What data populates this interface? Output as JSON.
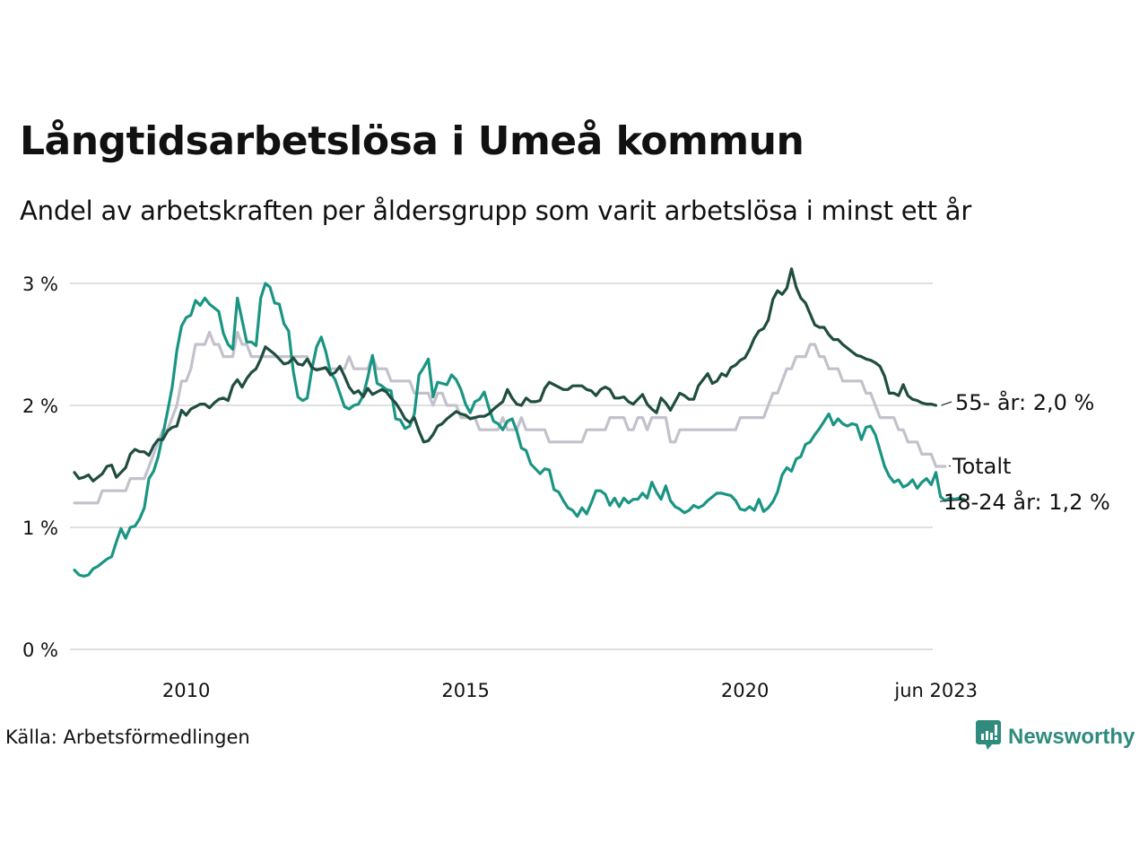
{
  "header": {
    "title": "Långtidsarbetslösa i Umeå kommun",
    "subtitle": "Andel av arbetskraften per åldersgrupp som varit arbetslösa i minst ett år"
  },
  "footer": {
    "source": "Källa: Arbetsförmedlingen",
    "brand": "Newsworthy",
    "brand_icon": "newsworthy-logo-icon"
  },
  "colors": {
    "age55": "#1f4d40",
    "total": "#c3c1cc",
    "age18_24": "#1a9583",
    "grid": "#e0e0e0"
  },
  "chart_data": {
    "type": "line",
    "title": "Långtidsarbetslösa i Umeå kommun",
    "subtitle": "Andel av arbetskraften per åldersgrupp som varit arbetslösa i minst ett år",
    "xlabel": "",
    "ylabel": "",
    "x_start": "2008-01",
    "x_end": "2023-06",
    "x_frequency": "monthly",
    "ylim": [
      0,
      3.2
    ],
    "y_ticks": [
      {
        "value": 0,
        "label": "0 %"
      },
      {
        "value": 1,
        "label": "1 %"
      },
      {
        "value": 2,
        "label": "2 %"
      },
      {
        "value": 3,
        "label": "3 %"
      }
    ],
    "x_ticks": [
      {
        "value": 2010,
        "label": "2010"
      },
      {
        "value": 2015,
        "label": "2015"
      },
      {
        "value": 2020,
        "label": "2020"
      },
      {
        "value": 2023.42,
        "label": "jun 2023"
      }
    ],
    "grid": true,
    "legend": "direct-labels-right",
    "series": [
      {
        "key": "age55",
        "name": "55- år",
        "end_label": "55- år: 2,0 %",
        "values": [
          1.45,
          1.4,
          1.41,
          1.43,
          1.38,
          1.41,
          1.44,
          1.5,
          1.51,
          1.41,
          1.45,
          1.49,
          1.6,
          1.64,
          1.62,
          1.62,
          1.59,
          1.67,
          1.72,
          1.72,
          1.79,
          1.82,
          1.83,
          1.96,
          1.92,
          1.97,
          1.99,
          2.01,
          2.01,
          1.98,
          2.02,
          2.05,
          2.06,
          2.04,
          2.16,
          2.21,
          2.15,
          2.22,
          2.27,
          2.3,
          2.38,
          2.48,
          2.45,
          2.42,
          2.38,
          2.34,
          2.35,
          2.39,
          2.34,
          2.33,
          2.38,
          2.31,
          2.29,
          2.3,
          2.31,
          2.25,
          2.27,
          2.32,
          2.24,
          2.15,
          2.1,
          2.12,
          2.07,
          2.14,
          2.09,
          2.11,
          2.13,
          2.11,
          2.06,
          2.02,
          1.96,
          1.89,
          1.86,
          1.9,
          1.79,
          1.7,
          1.71,
          1.76,
          1.83,
          1.85,
          1.89,
          1.92,
          1.95,
          1.93,
          1.92,
          1.89,
          1.9,
          1.91,
          1.91,
          1.93,
          1.97,
          2.0,
          2.03,
          2.13,
          2.06,
          2.01,
          2.0,
          2.06,
          2.03,
          2.03,
          2.04,
          2.14,
          2.19,
          2.17,
          2.15,
          2.13,
          2.13,
          2.16,
          2.16,
          2.16,
          2.13,
          2.12,
          2.08,
          2.13,
          2.15,
          2.13,
          2.06,
          2.06,
          2.07,
          2.03,
          2.01,
          2.05,
          2.09,
          2.01,
          1.97,
          1.94,
          2.06,
          2.02,
          1.96,
          2.03,
          2.1,
          2.08,
          2.05,
          2.05,
          2.16,
          2.21,
          2.26,
          2.18,
          2.2,
          2.26,
          2.24,
          2.31,
          2.33,
          2.37,
          2.39,
          2.46,
          2.55,
          2.61,
          2.63,
          2.7,
          2.87,
          2.94,
          2.91,
          2.96,
          3.12,
          2.97,
          2.88,
          2.84,
          2.75,
          2.66,
          2.64,
          2.64,
          2.58,
          2.54,
          2.54,
          2.5,
          2.47,
          2.44,
          2.41,
          2.4,
          2.38,
          2.37,
          2.35,
          2.32,
          2.24,
          2.1,
          2.1,
          2.08,
          2.17,
          2.08,
          2.05,
          2.04,
          2.02,
          2.01,
          2.01,
          2.0
        ]
      },
      {
        "key": "total",
        "name": "Totalt",
        "end_label": "Totalt",
        "values": [
          1.2,
          1.2,
          1.2,
          1.2,
          1.2,
          1.2,
          1.3,
          1.3,
          1.3,
          1.3,
          1.3,
          1.3,
          1.4,
          1.4,
          1.4,
          1.4,
          1.5,
          1.6,
          1.7,
          1.8,
          1.8,
          1.9,
          2.0,
          2.2,
          2.2,
          2.3,
          2.5,
          2.5,
          2.5,
          2.6,
          2.5,
          2.5,
          2.4,
          2.4,
          2.4,
          2.6,
          2.5,
          2.5,
          2.4,
          2.4,
          2.4,
          2.4,
          2.4,
          2.4,
          2.4,
          2.4,
          2.4,
          2.4,
          2.4,
          2.4,
          2.4,
          2.3,
          2.3,
          2.3,
          2.3,
          2.3,
          2.3,
          2.3,
          2.3,
          2.4,
          2.3,
          2.3,
          2.3,
          2.3,
          2.4,
          2.3,
          2.3,
          2.3,
          2.2,
          2.2,
          2.2,
          2.2,
          2.2,
          2.1,
          2.1,
          2.1,
          2.1,
          2.0,
          2.1,
          2.1,
          2.0,
          2.0,
          2.0,
          1.9,
          1.9,
          1.9,
          1.9,
          1.8,
          1.8,
          1.8,
          1.8,
          1.8,
          1.9,
          1.8,
          1.8,
          1.8,
          1.9,
          1.8,
          1.8,
          1.8,
          1.8,
          1.8,
          1.7,
          1.7,
          1.7,
          1.7,
          1.7,
          1.7,
          1.7,
          1.7,
          1.8,
          1.8,
          1.8,
          1.8,
          1.8,
          1.9,
          1.9,
          1.9,
          1.9,
          1.8,
          1.8,
          1.9,
          1.9,
          1.8,
          1.9,
          1.9,
          1.9,
          1.9,
          1.7,
          1.7,
          1.8,
          1.8,
          1.8,
          1.8,
          1.8,
          1.8,
          1.8,
          1.8,
          1.8,
          1.8,
          1.8,
          1.8,
          1.8,
          1.9,
          1.9,
          1.9,
          1.9,
          1.9,
          1.9,
          2.0,
          2.1,
          2.1,
          2.2,
          2.3,
          2.3,
          2.4,
          2.4,
          2.4,
          2.5,
          2.5,
          2.4,
          2.4,
          2.3,
          2.3,
          2.3,
          2.2,
          2.2,
          2.2,
          2.2,
          2.2,
          2.1,
          2.1,
          2.0,
          1.9,
          1.9,
          1.9,
          1.9,
          1.8,
          1.8,
          1.7,
          1.7,
          1.7,
          1.6,
          1.6,
          1.6,
          1.5,
          1.5,
          1.5
        ]
      },
      {
        "key": "age18_24",
        "name": "18-24 år",
        "end_label": "18-24 år: 1,2 %",
        "values": [
          0.65,
          0.61,
          0.6,
          0.61,
          0.66,
          0.68,
          0.71,
          0.74,
          0.76,
          0.88,
          0.99,
          0.91,
          1.0,
          1.01,
          1.07,
          1.16,
          1.4,
          1.46,
          1.58,
          1.76,
          1.95,
          2.15,
          2.45,
          2.65,
          2.72,
          2.74,
          2.86,
          2.82,
          2.88,
          2.83,
          2.8,
          2.77,
          2.59,
          2.5,
          2.46,
          2.88,
          2.7,
          2.52,
          2.52,
          2.49,
          2.88,
          3.0,
          2.97,
          2.84,
          2.83,
          2.67,
          2.61,
          2.28,
          2.07,
          2.04,
          2.06,
          2.3,
          2.48,
          2.56,
          2.44,
          2.27,
          2.21,
          2.1,
          1.99,
          1.97,
          2.0,
          2.01,
          2.08,
          2.23,
          2.41,
          2.18,
          2.16,
          2.13,
          2.12,
          1.89,
          1.88,
          1.81,
          1.83,
          1.93,
          2.25,
          2.31,
          2.38,
          2.07,
          2.19,
          2.18,
          2.17,
          2.25,
          2.21,
          2.13,
          2.01,
          1.94,
          2.03,
          2.05,
          2.11,
          1.98,
          1.87,
          1.85,
          1.8,
          1.87,
          1.89,
          1.79,
          1.65,
          1.63,
          1.52,
          1.48,
          1.44,
          1.48,
          1.47,
          1.31,
          1.29,
          1.22,
          1.16,
          1.14,
          1.09,
          1.16,
          1.11,
          1.2,
          1.3,
          1.3,
          1.27,
          1.18,
          1.24,
          1.17,
          1.24,
          1.2,
          1.23,
          1.23,
          1.28,
          1.24,
          1.37,
          1.29,
          1.23,
          1.34,
          1.22,
          1.17,
          1.15,
          1.12,
          1.14,
          1.18,
          1.16,
          1.18,
          1.22,
          1.25,
          1.28,
          1.28,
          1.27,
          1.26,
          1.22,
          1.15,
          1.14,
          1.17,
          1.14,
          1.23,
          1.13,
          1.16,
          1.21,
          1.29,
          1.43,
          1.49,
          1.46,
          1.56,
          1.58,
          1.68,
          1.7,
          1.76,
          1.81,
          1.87,
          1.93,
          1.84,
          1.89,
          1.85,
          1.83,
          1.85,
          1.84,
          1.72,
          1.82,
          1.83,
          1.76,
          1.63,
          1.5,
          1.42,
          1.37,
          1.39,
          1.33,
          1.35,
          1.39,
          1.32,
          1.37,
          1.4,
          1.35,
          1.45,
          1.25,
          1.22,
          1.24,
          1.23,
          1.24,
          1.23
        ]
      }
    ]
  }
}
